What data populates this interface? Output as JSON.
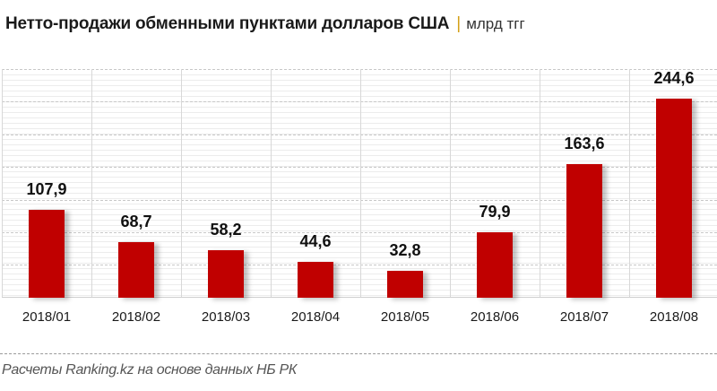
{
  "header": {
    "title": "Нетто-продажи обменными пунктами долларов США",
    "separator": "|",
    "unit": "млрд тгг"
  },
  "colors": {
    "bar": "#c00000",
    "separator": "#d4a017"
  },
  "footer": {
    "source": "Расчеты Ranking.kz на основе данных  НБ РК"
  },
  "chart_data": {
    "type": "bar",
    "title": "Нетто-продажи обменными пунктами долларов США",
    "subtitle": "млрд тгг",
    "xlabel": "",
    "ylabel": "млрд тгг",
    "categories": [
      "2018/01",
      "2018/02",
      "2018/03",
      "2018/04",
      "2018/05",
      "2018/06",
      "2018/07",
      "2018/08"
    ],
    "values": [
      107.9,
      68.7,
      58.2,
      44.6,
      32.8,
      79.9,
      163.6,
      244.6
    ],
    "value_labels": [
      "107,9",
      "68,7",
      "58,2",
      "44,6",
      "32,8",
      "79,9",
      "163,6",
      "244,6"
    ],
    "ylim": [
      0,
      280
    ],
    "grid": true,
    "legend": "none",
    "source": "Расчеты Ranking.kz на основе данных НБ РК"
  }
}
